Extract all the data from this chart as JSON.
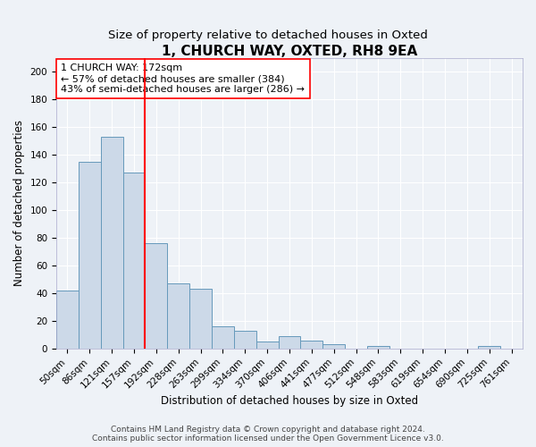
{
  "title": "1, CHURCH WAY, OXTED, RH8 9EA",
  "subtitle": "Size of property relative to detached houses in Oxted",
  "xlabel": "Distribution of detached houses by size in Oxted",
  "ylabel": "Number of detached properties",
  "bar_labels": [
    "50sqm",
    "86sqm",
    "121sqm",
    "157sqm",
    "192sqm",
    "228sqm",
    "263sqm",
    "299sqm",
    "334sqm",
    "370sqm",
    "406sqm",
    "441sqm",
    "477sqm",
    "512sqm",
    "548sqm",
    "583sqm",
    "619sqm",
    "654sqm",
    "690sqm",
    "725sqm",
    "761sqm"
  ],
  "bar_heights": [
    42,
    135,
    153,
    127,
    76,
    47,
    43,
    16,
    13,
    5,
    9,
    6,
    3,
    0,
    2,
    0,
    0,
    0,
    0,
    2,
    0
  ],
  "bar_color": "#ccd9e8",
  "bar_edge_color": "#6699bb",
  "property_line_x": 3.5,
  "property_line_color": "red",
  "annotation_line1": "1 CHURCH WAY: 172sqm",
  "annotation_line2": "← 57% of detached houses are smaller (384)",
  "annotation_line3": "43% of semi-detached houses are larger (286) →",
  "annotation_box_color": "white",
  "annotation_box_edge_color": "red",
  "ylim": [
    0,
    210
  ],
  "yticks": [
    0,
    20,
    40,
    60,
    80,
    100,
    120,
    140,
    160,
    180,
    200
  ],
  "footer_line1": "Contains HM Land Registry data © Crown copyright and database right 2024.",
  "footer_line2": "Contains public sector information licensed under the Open Government Licence v3.0.",
  "background_color": "#eef2f7",
  "plot_bg_color": "#eef2f7",
  "grid_color": "#ffffff",
  "title_fontsize": 11,
  "subtitle_fontsize": 9.5,
  "axis_label_fontsize": 8.5,
  "tick_fontsize": 7.5,
  "annotation_fontsize": 8,
  "footer_fontsize": 6.5
}
